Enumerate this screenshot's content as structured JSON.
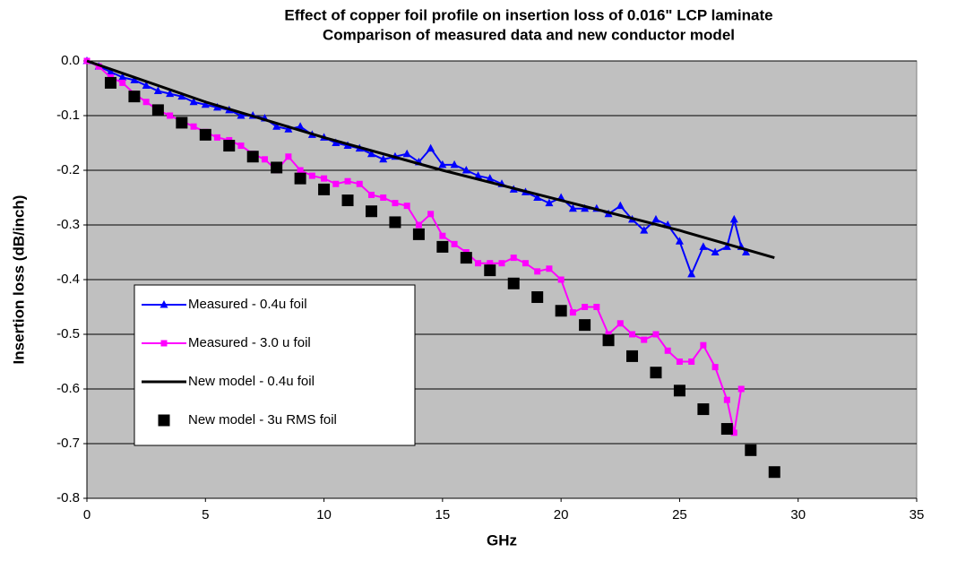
{
  "chart_data": {
    "type": "line",
    "title": "Effect of copper foil profile on insertion loss of 0.016\" LCP laminate",
    "subtitle": "Comparison of measured data and new conductor model",
    "x_label": "GHz",
    "y_label": "Insertion loss (dB/inch)",
    "xlim": [
      0,
      35
    ],
    "xticks": [
      0,
      5,
      10,
      15,
      20,
      25,
      30,
      35
    ],
    "ylim": [
      -0.8,
      0
    ],
    "yticks": [
      {
        "value": 0,
        "label": "0.0"
      },
      -0.1,
      -0.2,
      -0.3,
      -0.4,
      -0.5,
      -0.6,
      -0.7,
      -0.8
    ],
    "grid": true,
    "plot_background": "#c0c0c0",
    "legend": "lower left",
    "series": [
      {
        "name": "Measured - 0.4u foil",
        "color": "#0000ff",
        "marker": "triangle",
        "line": true,
        "x": [
          0,
          0.5,
          1,
          1.5,
          2,
          2.5,
          3,
          3.5,
          4,
          4.5,
          5,
          5.5,
          6,
          6.5,
          7,
          7.5,
          8,
          8.5,
          9,
          9.5,
          10,
          10.5,
          11,
          11.5,
          12,
          12.5,
          13,
          13.5,
          14,
          14.5,
          15,
          15.5,
          16,
          16.5,
          17,
          17.5,
          18,
          18.5,
          19,
          19.5,
          20,
          20.5,
          21,
          21.5,
          22,
          22.5,
          23,
          23.5,
          24,
          24.5,
          25,
          25.5,
          26,
          26.5,
          27,
          27.3,
          27.6,
          27.8
        ],
        "values": [
          0,
          -0.01,
          -0.02,
          -0.03,
          -0.035,
          -0.045,
          -0.055,
          -0.06,
          -0.065,
          -0.075,
          -0.08,
          -0.085,
          -0.09,
          -0.1,
          -0.1,
          -0.105,
          -0.12,
          -0.125,
          -0.12,
          -0.135,
          -0.14,
          -0.15,
          -0.155,
          -0.16,
          -0.17,
          -0.18,
          -0.175,
          -0.17,
          -0.185,
          -0.16,
          -0.19,
          -0.19,
          -0.2,
          -0.21,
          -0.215,
          -0.225,
          -0.235,
          -0.24,
          -0.25,
          -0.26,
          -0.25,
          -0.27,
          -0.27,
          -0.27,
          -0.28,
          -0.265,
          -0.29,
          -0.31,
          -0.29,
          -0.3,
          -0.33,
          -0.39,
          -0.34,
          -0.35,
          -0.34,
          -0.29,
          -0.34,
          -0.35
        ]
      },
      {
        "name": "Measured - 3.0 u foil",
        "color": "#ff00ff",
        "marker": "square",
        "line": true,
        "x": [
          0,
          0.5,
          1,
          1.5,
          2,
          2.5,
          3,
          3.5,
          4,
          4.5,
          5,
          5.5,
          6,
          6.5,
          7,
          7.5,
          8,
          8.5,
          9,
          9.5,
          10,
          10.5,
          11,
          11.5,
          12,
          12.5,
          13,
          13.5,
          14,
          14.5,
          15,
          15.5,
          16,
          16.5,
          17,
          17.5,
          18,
          18.5,
          19,
          19.5,
          20,
          20.5,
          21,
          21.5,
          22,
          22.5,
          23,
          23.5,
          24,
          24.5,
          25,
          25.5,
          26,
          26.5,
          27,
          27.3,
          27.6
        ],
        "values": [
          0,
          -0.01,
          -0.03,
          -0.04,
          -0.06,
          -0.075,
          -0.09,
          -0.1,
          -0.11,
          -0.12,
          -0.13,
          -0.14,
          -0.145,
          -0.155,
          -0.17,
          -0.18,
          -0.2,
          -0.175,
          -0.2,
          -0.21,
          -0.215,
          -0.225,
          -0.22,
          -0.225,
          -0.245,
          -0.25,
          -0.26,
          -0.265,
          -0.3,
          -0.28,
          -0.32,
          -0.335,
          -0.35,
          -0.37,
          -0.37,
          -0.37,
          -0.36,
          -0.37,
          -0.385,
          -0.38,
          -0.4,
          -0.46,
          -0.45,
          -0.45,
          -0.5,
          -0.48,
          -0.5,
          -0.51,
          -0.5,
          -0.53,
          -0.55,
          -0.55,
          -0.52,
          -0.56,
          -0.62,
          -0.68,
          -0.6
        ]
      },
      {
        "name": "New model -  0.4u foil",
        "color": "#000000",
        "marker": "none",
        "line": true,
        "x": [
          0,
          5,
          10,
          15,
          20,
          25,
          29
        ],
        "values": [
          0,
          -0.075,
          -0.14,
          -0.2,
          -0.255,
          -0.31,
          -0.36
        ]
      },
      {
        "name": "New model - 3u RMS foil",
        "color": "#000000",
        "marker": "bigsquare",
        "line": false,
        "x": [
          1,
          2,
          3,
          4,
          5,
          6,
          7,
          8,
          9,
          10,
          11,
          12,
          13,
          14,
          15,
          16,
          17,
          18,
          19,
          20,
          21,
          22,
          23,
          24,
          25,
          26,
          27,
          28,
          29
        ],
        "values": [
          -0.04,
          -0.065,
          -0.09,
          -0.113,
          -0.135,
          -0.155,
          -0.175,
          -0.195,
          -0.215,
          -0.235,
          -0.255,
          -0.275,
          -0.295,
          -0.317,
          -0.34,
          -0.36,
          -0.383,
          -0.407,
          -0.432,
          -0.457,
          -0.483,
          -0.511,
          -0.54,
          -0.57,
          -0.603,
          -0.637,
          -0.673,
          -0.712,
          -0.752
        ]
      }
    ]
  }
}
